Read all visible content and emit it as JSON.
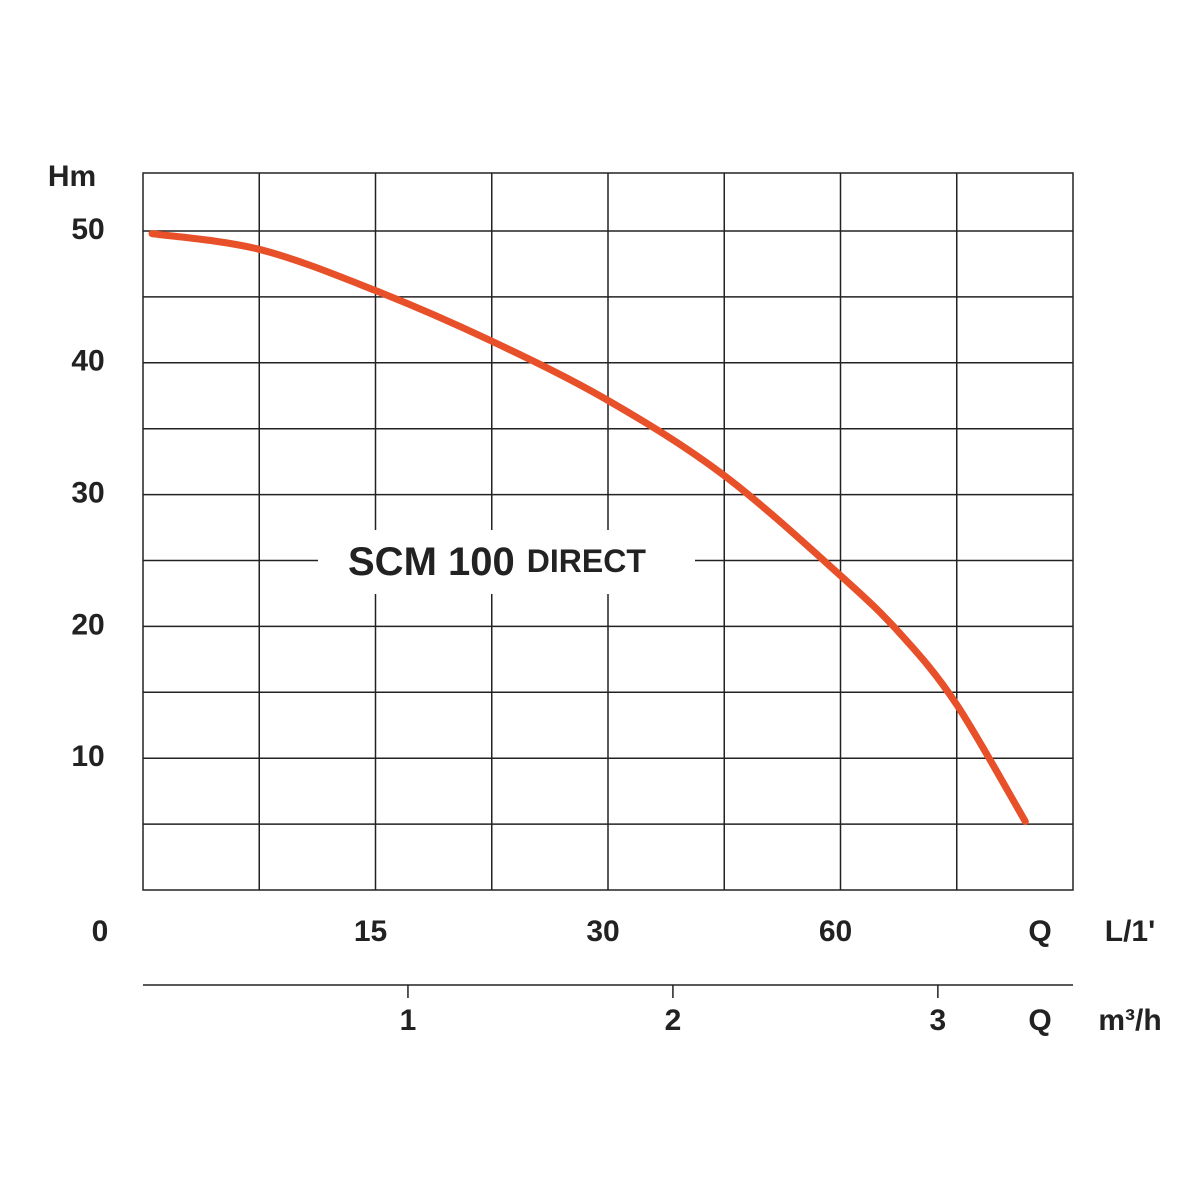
{
  "chart_data": {
    "type": "line",
    "y_label": "Hm",
    "origin_label": "0",
    "x_top_symbol": "Q",
    "x_top_unit": "L/1'",
    "x_top_labels": [
      "15",
      "30",
      "60"
    ],
    "x_symbol": "Q",
    "x_unit": "m³/h",
    "model": "SCM 100",
    "variant": "DIRECT",
    "xlim": [
      0,
      3.51
    ],
    "xticks": [
      1,
      2,
      3
    ],
    "ylim": [
      0,
      54.4
    ],
    "yticks": [
      10,
      20,
      30,
      40,
      50
    ],
    "grid": true,
    "series": [
      {
        "color": "#e8502a",
        "x": [
          0.034,
          0.44,
          0.875,
          1.31,
          1.75,
          2.19,
          2.63,
          2.86,
          3.07,
          3.33
        ],
        "values": [
          49.8,
          48.6,
          45.5,
          41.7,
          37.2,
          31.5,
          23.9,
          19.4,
          14.1,
          5.2
        ]
      }
    ]
  }
}
